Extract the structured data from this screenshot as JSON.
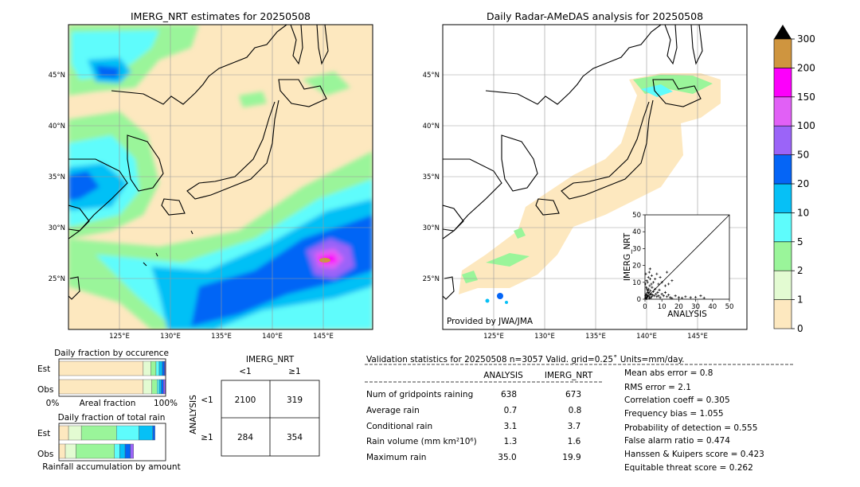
{
  "left_map": {
    "title": "IMERG_NRT estimates for 20250508",
    "lat_labels": [
      "45°N",
      "40°N",
      "35°N",
      "30°N",
      "25°N"
    ],
    "lon_labels": [
      "125°E",
      "130°E",
      "135°E",
      "140°E",
      "145°E"
    ]
  },
  "right_map": {
    "title": "Daily Radar-AMeDAS analysis for 20250508",
    "lat_labels": [
      "45°N",
      "40°N",
      "35°N",
      "30°N",
      "25°N"
    ],
    "lon_labels": [
      "125°E",
      "130°E",
      "135°E",
      "140°E",
      "145°E"
    ],
    "credit": "Provided by JWA/JMA"
  },
  "colorbar": {
    "levels": [
      "0",
      "1",
      "2",
      "5",
      "10",
      "20",
      "50",
      "100",
      "150",
      "200",
      "300"
    ],
    "colors": [
      "#fde8bf",
      "#e3fbd2",
      "#9af59a",
      "#5efcfc",
      "#06c0f6",
      "#0565f6",
      "#9b64f8",
      "#e160f6",
      "#fc00fb",
      "#cf953f"
    ],
    "over_color": "#000000"
  },
  "chart_data": [
    {
      "type": "scatter",
      "title": "",
      "xlabel": "ANALYSIS",
      "ylabel": "IMERG_NRT",
      "xlim": [
        0,
        50
      ],
      "ylim": [
        0,
        50
      ],
      "xticks": [
        "0",
        "10",
        "20",
        "30",
        "40",
        "50"
      ],
      "yticks": [
        "0",
        "10",
        "20",
        "30",
        "40",
        "50"
      ],
      "diagonal": true,
      "points": [
        [
          0.2,
          0.5
        ],
        [
          0.5,
          1.2
        ],
        [
          0.8,
          0.3
        ],
        [
          1,
          2.5
        ],
        [
          1.2,
          1
        ],
        [
          1.5,
          4
        ],
        [
          1.8,
          2
        ],
        [
          2,
          3.5
        ],
        [
          2.2,
          6
        ],
        [
          2.5,
          1.5
        ],
        [
          2.8,
          8
        ],
        [
          3,
          2.8
        ],
        [
          3.2,
          5
        ],
        [
          3.5,
          3
        ],
        [
          3.8,
          9
        ],
        [
          4,
          1.5
        ],
        [
          4.2,
          7
        ],
        [
          4.5,
          2.5
        ],
        [
          5,
          4.5
        ],
        [
          5.5,
          2
        ],
        [
          6,
          6
        ],
        [
          6.5,
          3
        ],
        [
          7,
          1.5
        ],
        [
          7.5,
          4
        ],
        [
          8,
          2
        ],
        [
          8.5,
          5.5
        ],
        [
          9,
          1
        ],
        [
          10,
          3
        ],
        [
          11,
          2
        ],
        [
          12,
          4
        ],
        [
          13,
          1.5
        ],
        [
          14,
          2.5
        ],
        [
          15,
          1
        ],
        [
          16,
          0.5
        ],
        [
          18,
          2
        ],
        [
          20,
          1
        ],
        [
          22,
          0.8
        ],
        [
          24,
          1.5
        ],
        [
          27,
          1
        ],
        [
          30,
          1.2
        ],
        [
          33,
          2
        ],
        [
          35,
          0.8
        ],
        [
          1,
          11
        ],
        [
          2,
          13
        ],
        [
          1.5,
          10
        ],
        [
          3,
          12
        ],
        [
          0.5,
          15
        ],
        [
          2.5,
          16
        ],
        [
          4,
          14
        ],
        [
          3,
          18
        ],
        [
          0.3,
          9
        ],
        [
          5,
          10
        ],
        [
          6,
          12
        ],
        [
          8,
          9
        ],
        [
          10,
          10
        ],
        [
          12,
          8
        ],
        [
          14,
          9
        ],
        [
          16,
          11
        ],
        [
          13,
          16
        ],
        [
          9,
          13
        ],
        [
          7,
          15
        ],
        [
          0.8,
          7
        ],
        [
          1.2,
          6
        ],
        [
          1.6,
          5
        ],
        [
          2.4,
          4
        ],
        [
          0.6,
          3
        ],
        [
          0.4,
          2
        ],
        [
          1.4,
          1.8
        ],
        [
          2.6,
          0.6
        ],
        [
          3.4,
          0.9
        ]
      ]
    },
    {
      "type": "bar",
      "title": "Daily fraction by occurence",
      "xlabel": "Areal fraction",
      "xtick_labels": [
        "0%",
        "100%"
      ],
      "categories": [
        "Est",
        "Obs"
      ],
      "series": [
        {
          "values": [
            0.79,
            0.79
          ]
        },
        {
          "values": [
            0.07,
            0.08
          ]
        },
        {
          "values": [
            0.05,
            0.05
          ]
        },
        {
          "values": [
            0.03,
            0.02
          ]
        },
        {
          "values": [
            0.03,
            0.02
          ]
        },
        {
          "values": [
            0.02,
            0.02
          ]
        },
        {
          "values": [
            0.01,
            0.02
          ]
        }
      ]
    },
    {
      "type": "bar",
      "title": "Daily fraction of total rain",
      "xlabel": "Rainfall accumulation by amount",
      "categories": [
        "Est",
        "Obs"
      ],
      "series": [
        {
          "values": [
            0.09,
            0.06
          ]
        },
        {
          "values": [
            0.12,
            0.1
          ]
        },
        {
          "values": [
            0.33,
            0.36
          ]
        },
        {
          "values": [
            0.21,
            0.05
          ]
        },
        {
          "values": [
            0.13,
            0.05
          ]
        },
        {
          "values": [
            0.02,
            0.05
          ]
        },
        {
          "values": [
            0.0,
            0.03
          ]
        }
      ]
    }
  ],
  "contingency": {
    "col_header": "IMERG_NRT",
    "cols": [
      "<1",
      "≥1"
    ],
    "row_header": "ANALYSIS",
    "rows": [
      "<1",
      "≥1"
    ],
    "cells": [
      [
        "2100",
        "319"
      ],
      [
        "284",
        "354"
      ]
    ]
  },
  "validation": {
    "header": "Validation statistics for 20250508  n=3057 Valid. grid=0.25˚ Units=mm/day.",
    "col_analysis": "ANALYSIS",
    "col_imerg": "IMERG_NRT",
    "rows": [
      {
        "label": "Num of gridpoints raining",
        "analysis": "638",
        "imerg": "673"
      },
      {
        "label": "Average rain",
        "analysis": "0.7",
        "imerg": "0.8"
      },
      {
        "label": "Conditional rain",
        "analysis": "3.1",
        "imerg": "3.7"
      },
      {
        "label": "Rain volume (mm km²10⁶)",
        "analysis": "1.3",
        "imerg": "1.6"
      },
      {
        "label": "Maximum rain",
        "analysis": "35.0",
        "imerg": "19.9"
      }
    ],
    "scores": [
      "Mean abs error =    0.8",
      "RMS error =    2.1",
      "Correlation coeff =  0.305",
      "Frequency bias =  1.055",
      "Probability of detection =  0.555",
      "False alarm ratio =  0.474",
      "Hanssen & Kuipers score =  0.423",
      "Equitable threat score =  0.262"
    ]
  }
}
